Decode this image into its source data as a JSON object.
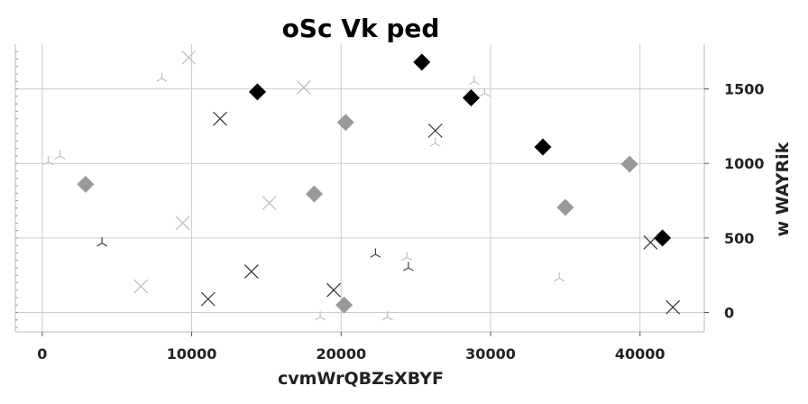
{
  "chart_data": {
    "type": "scatter",
    "title": "oSc   Vk ped",
    "xlabel": "cvmWrQBZsXBYF",
    "ylabel": "w WAYRik",
    "xlim": [
      -1800,
      44300
    ],
    "ylim": [
      -130,
      1800
    ],
    "xticks": [
      0,
      10000,
      20000,
      30000,
      40000
    ],
    "xtick_labels": [
      "0",
      "10000",
      "20000",
      "30000",
      "40000"
    ],
    "yticks": [
      0,
      500,
      1000,
      1500
    ],
    "ytick_labels": [
      "0",
      "500",
      "1000",
      "1500"
    ],
    "y_axis_side": "right",
    "grid": true,
    "legend": "none",
    "series": [
      {
        "marker": "diamond",
        "color": "#000000",
        "points": [
          [
            14400,
            1480
          ],
          [
            25400,
            1680
          ],
          [
            28700,
            1440
          ],
          [
            33500,
            1110
          ],
          [
            41500,
            500
          ]
        ]
      },
      {
        "marker": "diamond",
        "color": "#999999",
        "points": [
          [
            2900,
            860
          ],
          [
            18200,
            795
          ],
          [
            20300,
            1275
          ],
          [
            20200,
            50
          ],
          [
            35000,
            705
          ],
          [
            39300,
            995
          ]
        ]
      },
      {
        "marker": "x",
        "color": "#333333",
        "points": [
          [
            11900,
            1300
          ],
          [
            26300,
            1220
          ],
          [
            14000,
            275
          ],
          [
            11100,
            90
          ],
          [
            19500,
            150
          ],
          [
            40700,
            470
          ],
          [
            42200,
            35
          ]
        ]
      },
      {
        "marker": "x",
        "color": "#bbbbbb",
        "points": [
          [
            9800,
            1710
          ],
          [
            17500,
            1510
          ],
          [
            15200,
            735
          ],
          [
            9400,
            600
          ],
          [
            6600,
            175
          ]
        ]
      },
      {
        "marker": "tri",
        "color": "#333333",
        "points": [
          [
            4000,
            465
          ],
          [
            22300,
            390
          ],
          [
            24500,
            300
          ]
        ]
      },
      {
        "marker": "tri",
        "color": "#bbbbbb",
        "points": [
          [
            8000,
            1570
          ],
          [
            1200,
            1050
          ],
          [
            400,
            1010
          ],
          [
            28900,
            1550
          ],
          [
            29600,
            1470
          ],
          [
            26300,
            1135
          ],
          [
            24400,
            370
          ],
          [
            34600,
            230
          ],
          [
            18600,
            -30
          ],
          [
            23100,
            -30
          ]
        ]
      }
    ]
  }
}
